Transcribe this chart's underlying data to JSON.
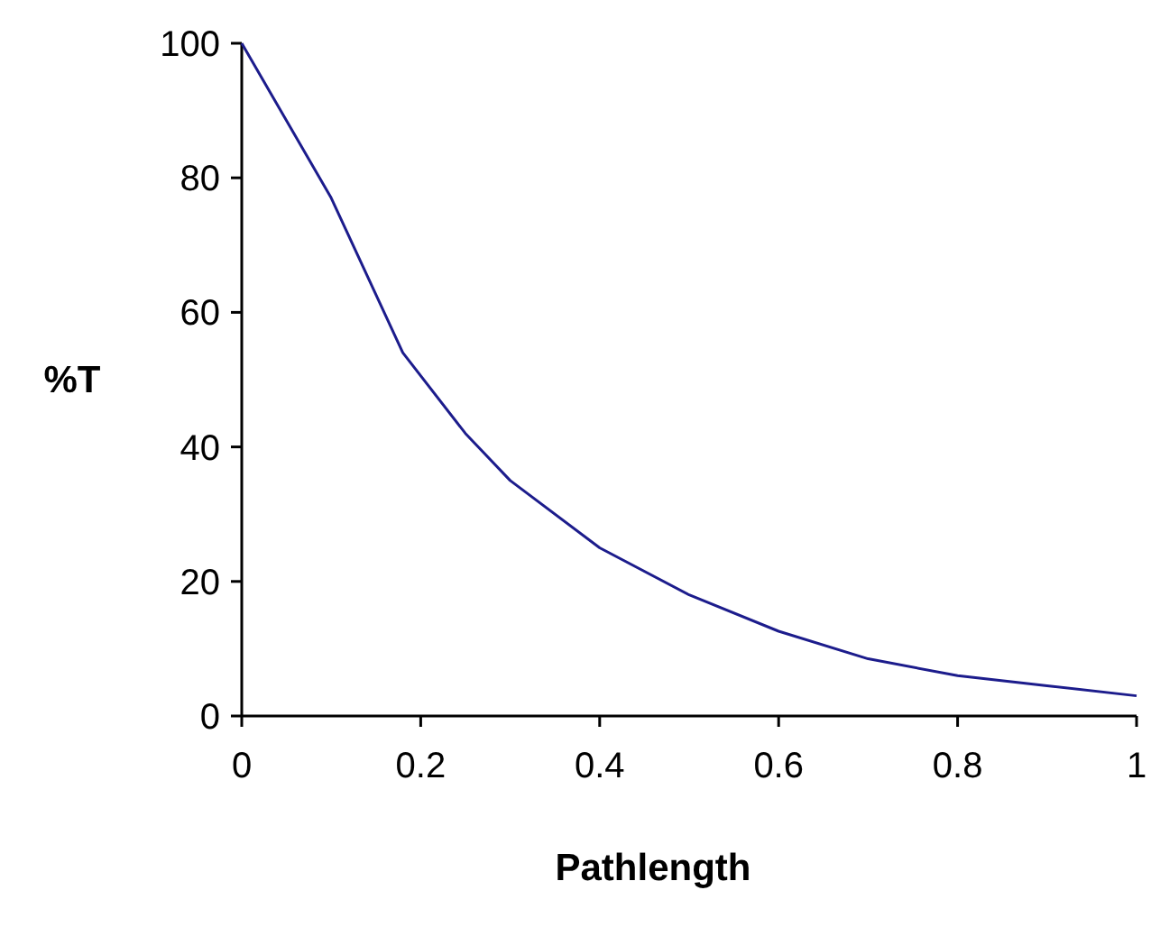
{
  "chart_data": {
    "type": "line",
    "xlabel": "Pathlength",
    "ylabel": "%T",
    "series": [
      {
        "color": "#1c1c8c",
        "x": [
          0,
          0.1,
          0.18,
          0.25,
          0.3,
          0.4,
          0.5,
          0.6,
          0.7,
          0.8,
          0.9,
          1
        ],
        "values": [
          100,
          77,
          54,
          42,
          35,
          25,
          18,
          12.6,
          8.5,
          6,
          4.5,
          3
        ]
      }
    ],
    "xlim": [
      0,
      1
    ],
    "xticks": [
      0,
      0.2,
      0.4,
      0.6,
      0.8,
      1
    ],
    "ylim": [
      0,
      100
    ],
    "yticks": [
      0,
      20,
      40,
      60,
      80,
      100
    ],
    "grid": false,
    "marker": "none",
    "line_style": "solid"
  }
}
